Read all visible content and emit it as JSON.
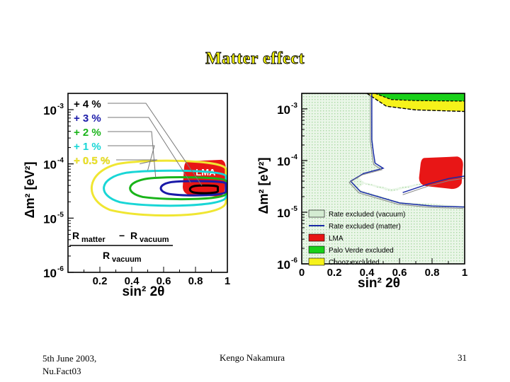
{
  "slide": {
    "title": "Matter effect",
    "footer_left_line1": "5th June 2003,",
    "footer_left_line2": "Nu.Fact03",
    "footer_center": "Kengo Nakamura",
    "footer_right": "31"
  },
  "chart_data": [
    {
      "type": "contour",
      "xlabel": "sin² 2θ",
      "ylabel": "Δm² [eV²]",
      "xlim": [
        0,
        1
      ],
      "ylim_log10": [
        -6,
        -2.7
      ],
      "x_ticks": [
        "0.2",
        "0.4",
        "0.6",
        "0.8",
        "1"
      ],
      "y_ticks": [
        {
          "base": "10",
          "exp": "-3",
          "log": -3
        },
        {
          "base": "10",
          "exp": "-4",
          "log": -4
        },
        {
          "base": "10",
          "exp": "-5",
          "log": -5
        },
        {
          "base": "10",
          "exp": "-6",
          "log": -6
        }
      ],
      "legend": [
        {
          "label": "+ 4 %",
          "color": "#000000"
        },
        {
          "label": "+ 3 %",
          "color": "#1a1aa8"
        },
        {
          "label": "+ 2 %",
          "color": "#19b419"
        },
        {
          "label": "+ 1 %",
          "color": "#19d6d6"
        },
        {
          "label": "+ 0.5 %",
          "color": "#f0e632"
        }
      ],
      "region_label": "LMA",
      "formula": {
        "num_a": "R",
        "num_a_sub": "matter",
        "minus": "−",
        "num_b": "R",
        "num_b_sub": "vacuum",
        "den": "R",
        "den_sub": "vacuum"
      },
      "series": [
        {
          "name": "+ 0.5 %",
          "color": "#f0e632",
          "center": [
            0.6,
            -4.45
          ],
          "rx": 0.48,
          "rlog": 0.5
        },
        {
          "name": "+ 1 %",
          "color": "#19d6d6",
          "center": [
            0.62,
            -4.45
          ],
          "rx": 0.42,
          "rlog": 0.32
        },
        {
          "name": "+ 2 %",
          "color": "#19b419",
          "center": [
            0.7,
            -4.45
          ],
          "rx": 0.33,
          "rlog": 0.2
        },
        {
          "name": "+ 3 %",
          "color": "#1a1aa8",
          "center": [
            0.78,
            -4.45
          ],
          "rx": 0.21,
          "rlog": 0.13
        },
        {
          "name": "+ 4 %",
          "color": "#000000",
          "center": [
            0.85,
            -4.47
          ],
          "rx": 0.09,
          "rlog": 0.07
        }
      ],
      "lma": {
        "x_range": [
          0.72,
          0.99
        ],
        "log_range": [
          -4.6,
          -3.95
        ]
      }
    },
    {
      "type": "exclusion",
      "xlabel": "sin² 2θ",
      "ylabel": "Δm² [eV²]",
      "xlim": [
        0,
        1
      ],
      "ylim_log10": [
        -6,
        -2.7
      ],
      "x_ticks": [
        "0",
        "0.2",
        "0.4",
        "0.6",
        "0.8",
        "1"
      ],
      "y_ticks": [
        {
          "base": "10",
          "exp": "-3",
          "log": -3
        },
        {
          "base": "10",
          "exp": "-4",
          "log": -4
        },
        {
          "base": "10",
          "exp": "-5",
          "log": -5
        },
        {
          "base": "10",
          "exp": "-6",
          "log": -6
        }
      ],
      "legend": [
        {
          "label": "Rate excluded (vacuum)",
          "color": "#d4ecd2"
        },
        {
          "label": "Rate excluded (matter)",
          "color": "#1a2aa8"
        },
        {
          "label": "LMA",
          "color": "#e81616"
        },
        {
          "label": "Palo Verde excluded",
          "color": "#19d119"
        },
        {
          "label": "Chooz excluded",
          "color": "#f6f21a"
        }
      ],
      "boundary_matter": [
        [
          0.43,
          -2.7
        ],
        [
          0.43,
          -3.2
        ],
        [
          0.43,
          -3.6
        ],
        [
          0.44,
          -3.85
        ],
        [
          0.45,
          -4.05
        ],
        [
          0.5,
          -4.15
        ],
        [
          0.38,
          -4.25
        ],
        [
          0.3,
          -4.4
        ],
        [
          0.36,
          -4.6
        ],
        [
          0.6,
          -4.82
        ],
        [
          0.8,
          -4.88
        ],
        [
          1.0,
          -4.9
        ]
      ],
      "boundary_upper": [
        [
          0.8,
          -4.4
        ],
        [
          0.9,
          -4.35
        ],
        [
          1.0,
          -4.3
        ]
      ],
      "chooz_curve": [
        [
          0.4,
          -2.7
        ],
        [
          0.52,
          -2.95
        ],
        [
          0.7,
          -3.02
        ],
        [
          1.0,
          -3.05
        ]
      ],
      "palo_verde_curve": [
        [
          0.45,
          -2.7
        ],
        [
          0.55,
          -2.82
        ],
        [
          0.7,
          -2.84
        ],
        [
          1.0,
          -2.85
        ]
      ],
      "lma": {
        "x_range": [
          0.72,
          0.99
        ],
        "log_range": [
          -4.55,
          -3.95
        ]
      }
    }
  ]
}
